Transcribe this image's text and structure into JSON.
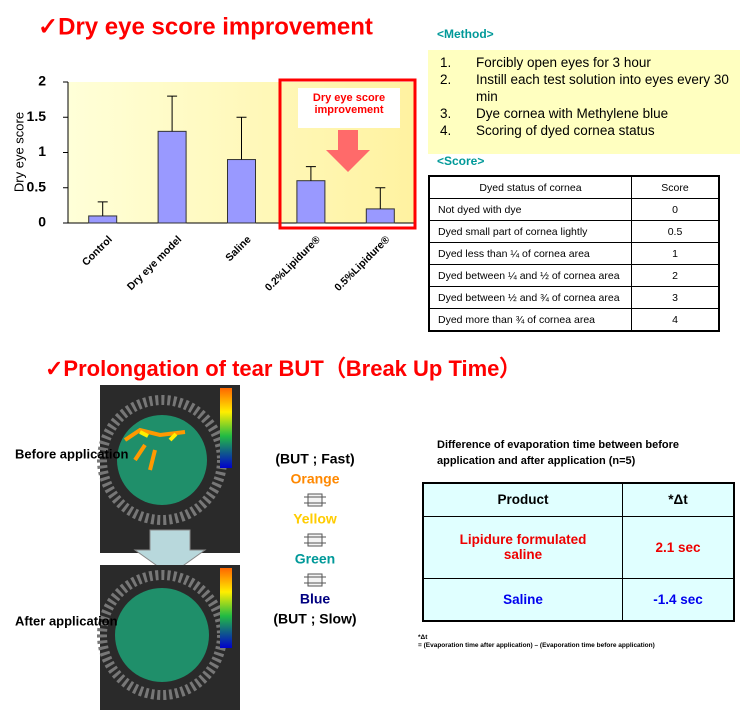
{
  "chart_data": {
    "type": "bar",
    "title": "✓Dry eye score improvement",
    "y_label": "Dry eye score",
    "categories": [
      "Control",
      "Dry eye model",
      "Saline",
      "0.2%Lipidure®",
      "0.5%Lipidure®"
    ],
    "values": [
      0.1,
      1.3,
      0.9,
      0.6,
      0.2
    ],
    "errors": [
      0.2,
      0.5,
      0.6,
      0.2,
      0.3
    ],
    "color": "#9999ff",
    "ylim": [
      0,
      2
    ],
    "yticks": [
      0,
      0.5,
      1,
      1.5,
      2
    ],
    "annotation": "Dry eye score improvement"
  },
  "method": {
    "title": "<Method>",
    "items": [
      {
        "num": "1.",
        "text": "Forcibly open eyes for 3 hour"
      },
      {
        "num": "2.",
        "text": "Instill each test solution into eyes every 30 min"
      },
      {
        "num": "3.",
        "text": "Dye cornea with Methylene blue"
      },
      {
        "num": "4.",
        "text": "Scoring of dyed cornea status"
      }
    ]
  },
  "score": {
    "title": "<Score>",
    "header": [
      "Dyed status of cornea",
      "Score"
    ],
    "rows": [
      [
        "Not dyed with dye",
        "0"
      ],
      [
        "Dyed small part of cornea lightly",
        "0.5"
      ],
      [
        "Dyed less than ¼ of cornea area",
        "1"
      ],
      [
        "Dyed between ¼ and ½ of cornea area",
        "2"
      ],
      [
        "Dyed between ½ and ¾ of cornea area",
        "3"
      ],
      [
        "Dyed more than ¾ of cornea area",
        "4"
      ]
    ]
  },
  "but": {
    "title": "✓Prolongation of tear BUT（Break Up Time）",
    "before": "Before application",
    "after": "After application",
    "scale": [
      "(BUT ; Fast)",
      "Orange",
      "Yellow",
      "Green",
      "Blue",
      "(BUT ; Slow)"
    ]
  },
  "evaporation": {
    "title": "Difference of evaporation time between before application and after application (n=5)",
    "header": [
      "Product",
      "*Δt"
    ],
    "rows": [
      [
        "Lipidure formulated saline",
        "2.1 sec"
      ],
      [
        "Saline",
        "-1.4 sec"
      ]
    ],
    "footnote": [
      "*Δt",
      "= (Evaporation time after application) – (Evaporation time before application)"
    ]
  }
}
